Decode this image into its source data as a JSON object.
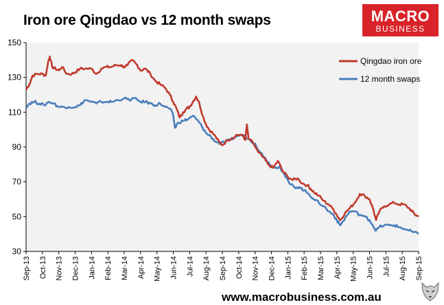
{
  "title": "Iron ore Qingdao vs 12 month swaps",
  "logo": {
    "line1": "MACRO",
    "line2": "BUSINESS"
  },
  "footer": "www.macrobusiness.com.au",
  "colors": {
    "iron": "#c0392b",
    "swaps": "#4a7ebb",
    "plot_bg": "#f2f2f2",
    "logo_bg": "#d9232a"
  },
  "chart_data": {
    "type": "line",
    "title": "Iron ore Qingdao vs 12 month swaps",
    "xlabel": "",
    "ylabel": "",
    "ylim": [
      30,
      150
    ],
    "yticks": [
      30,
      50,
      70,
      90,
      110,
      130,
      150
    ],
    "xlim": [
      0,
      24
    ],
    "x_tick_labels": [
      "Sep-13",
      "Oct-13",
      "Nov-13",
      "Dec-13",
      "Jan-14",
      "Feb-14",
      "Mar-14",
      "Apr-14",
      "May-14",
      "Jun-14",
      "Jul-14",
      "Aug-14",
      "Sep-14",
      "Oct-14",
      "Nov-14",
      "Dec-14",
      "Jan-15",
      "Feb-15",
      "Mar-15",
      "Apr-15",
      "May-15",
      "Jun-15",
      "Jul-15",
      "Aug-15",
      "Sep-15"
    ],
    "grid": false,
    "legend": "top-right",
    "series": [
      {
        "name": "Qingdao iron ore",
        "points": [
          [
            0,
            123
          ],
          [
            0.2,
            126
          ],
          [
            0.4,
            131
          ],
          [
            0.7,
            132
          ],
          [
            1.0,
            132
          ],
          [
            1.2,
            131
          ],
          [
            1.35,
            139
          ],
          [
            1.45,
            142
          ],
          [
            1.6,
            136
          ],
          [
            1.8,
            135
          ],
          [
            2.0,
            134
          ],
          [
            2.2,
            136
          ],
          [
            2.5,
            132
          ],
          [
            2.8,
            132
          ],
          [
            3.0,
            133
          ],
          [
            3.3,
            135
          ],
          [
            3.6,
            135
          ],
          [
            4.0,
            135
          ],
          [
            4.3,
            132
          ],
          [
            4.6,
            135
          ],
          [
            4.9,
            136
          ],
          [
            5.2,
            136
          ],
          [
            5.5,
            137
          ],
          [
            5.8,
            137
          ],
          [
            6.0,
            136
          ],
          [
            6.2,
            137
          ],
          [
            6.5,
            140
          ],
          [
            6.8,
            137
          ],
          [
            7.0,
            134
          ],
          [
            7.3,
            135
          ],
          [
            7.6,
            132
          ],
          [
            7.9,
            128
          ],
          [
            8.2,
            126
          ],
          [
            8.5,
            124
          ],
          [
            8.8,
            120
          ],
          [
            9.0,
            116
          ],
          [
            9.2,
            112
          ],
          [
            9.4,
            107
          ],
          [
            9.6,
            110
          ],
          [
            9.8,
            112
          ],
          [
            10.0,
            113
          ],
          [
            10.2,
            116
          ],
          [
            10.4,
            119
          ],
          [
            10.6,
            115
          ],
          [
            10.8,
            108
          ],
          [
            11.0,
            103
          ],
          [
            11.2,
            100
          ],
          [
            11.5,
            97
          ],
          [
            11.8,
            93
          ],
          [
            12.0,
            91
          ],
          [
            12.3,
            94
          ],
          [
            12.6,
            95
          ],
          [
            12.9,
            97
          ],
          [
            13.2,
            97
          ],
          [
            13.4,
            94
          ],
          [
            13.5,
            103
          ],
          [
            13.6,
            95
          ],
          [
            13.9,
            92
          ],
          [
            14.2,
            87
          ],
          [
            14.5,
            84
          ],
          [
            14.8,
            80
          ],
          [
            15.1,
            78
          ],
          [
            15.4,
            82
          ],
          [
            15.7,
            76
          ],
          [
            16.0,
            73
          ],
          [
            16.3,
            71
          ],
          [
            16.6,
            72
          ],
          [
            16.9,
            69
          ],
          [
            17.2,
            68
          ],
          [
            17.4,
            66
          ],
          [
            17.6,
            64
          ],
          [
            17.9,
            62
          ],
          [
            18.2,
            59
          ],
          [
            18.5,
            57
          ],
          [
            18.8,
            54
          ],
          [
            19.0,
            51
          ],
          [
            19.2,
            48
          ],
          [
            19.5,
            52
          ],
          [
            19.8,
            55
          ],
          [
            20.1,
            58
          ],
          [
            20.4,
            63
          ],
          [
            20.7,
            62
          ],
          [
            21.0,
            60
          ],
          [
            21.2,
            55
          ],
          [
            21.4,
            48
          ],
          [
            21.6,
            53
          ],
          [
            21.9,
            56
          ],
          [
            22.2,
            57
          ],
          [
            22.5,
            58
          ],
          [
            22.8,
            57
          ],
          [
            23.1,
            57
          ],
          [
            23.4,
            55
          ],
          [
            23.6,
            53
          ],
          [
            23.8,
            51
          ],
          [
            24.0,
            50
          ]
        ]
      },
      {
        "name": "12 month swaps",
        "points": [
          [
            0,
            113
          ],
          [
            0.2,
            115
          ],
          [
            0.5,
            116
          ],
          [
            0.8,
            115
          ],
          [
            1.1,
            114
          ],
          [
            1.4,
            116
          ],
          [
            1.7,
            115
          ],
          [
            2.0,
            113
          ],
          [
            2.3,
            113
          ],
          [
            2.6,
            113
          ],
          [
            3.0,
            113
          ],
          [
            3.3,
            114
          ],
          [
            3.6,
            117
          ],
          [
            4.0,
            116
          ],
          [
            4.3,
            115
          ],
          [
            4.6,
            116
          ],
          [
            5.0,
            116
          ],
          [
            5.3,
            116
          ],
          [
            5.6,
            117
          ],
          [
            6.0,
            118
          ],
          [
            6.3,
            117
          ],
          [
            6.6,
            118
          ],
          [
            7.0,
            116
          ],
          [
            7.3,
            116
          ],
          [
            7.6,
            115
          ],
          [
            7.9,
            114
          ],
          [
            8.2,
            115
          ],
          [
            8.5,
            113
          ],
          [
            8.8,
            112
          ],
          [
            9.0,
            108
          ],
          [
            9.1,
            101
          ],
          [
            9.3,
            104
          ],
          [
            9.6,
            105
          ],
          [
            9.9,
            106
          ],
          [
            10.2,
            108
          ],
          [
            10.4,
            106
          ],
          [
            10.6,
            104
          ],
          [
            10.8,
            101
          ],
          [
            11.0,
            98
          ],
          [
            11.3,
            96
          ],
          [
            11.6,
            93
          ],
          [
            11.9,
            92
          ],
          [
            12.2,
            93
          ],
          [
            12.5,
            94
          ],
          [
            12.8,
            96
          ],
          [
            13.1,
            97
          ],
          [
            13.4,
            96
          ],
          [
            13.7,
            94
          ],
          [
            14.0,
            92
          ],
          [
            14.3,
            87
          ],
          [
            14.6,
            84
          ],
          [
            14.9,
            80
          ],
          [
            15.2,
            78
          ],
          [
            15.5,
            79
          ],
          [
            15.8,
            74
          ],
          [
            16.1,
            69
          ],
          [
            16.4,
            67
          ],
          [
            16.7,
            67
          ],
          [
            17.0,
            65
          ],
          [
            17.3,
            63
          ],
          [
            17.6,
            60
          ],
          [
            17.9,
            58
          ],
          [
            18.2,
            56
          ],
          [
            18.5,
            53
          ],
          [
            18.8,
            51
          ],
          [
            19.0,
            48
          ],
          [
            19.2,
            45
          ],
          [
            19.5,
            49
          ],
          [
            19.8,
            53
          ],
          [
            20.1,
            53
          ],
          [
            20.4,
            51
          ],
          [
            20.7,
            50
          ],
          [
            21.0,
            48
          ],
          [
            21.2,
            45
          ],
          [
            21.4,
            42
          ],
          [
            21.6,
            44
          ],
          [
            21.9,
            45
          ],
          [
            22.2,
            45
          ],
          [
            22.5,
            45
          ],
          [
            22.8,
            44
          ],
          [
            23.1,
            43
          ],
          [
            23.4,
            42
          ],
          [
            23.7,
            41
          ],
          [
            24.0,
            40
          ]
        ]
      }
    ]
  }
}
